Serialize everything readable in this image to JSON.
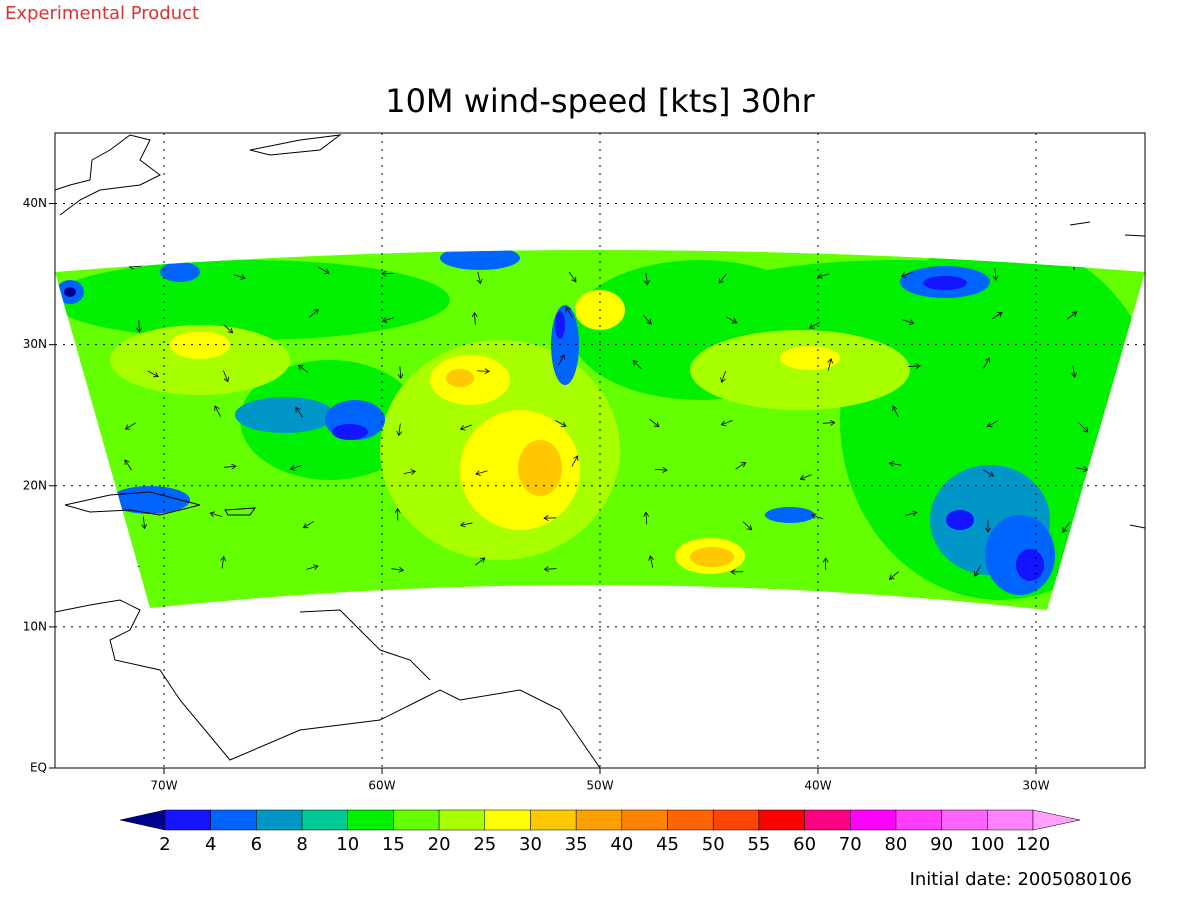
{
  "header": {
    "label": "Experimental Product"
  },
  "map": {
    "title": "10M wind-speed [kts] 30hr",
    "xlim": [
      -75,
      -25
    ],
    "ylim": [
      0,
      45
    ],
    "xticks": [
      {
        "value": -70,
        "label": "70W"
      },
      {
        "value": -60,
        "label": "60W"
      },
      {
        "value": -50,
        "label": "50W"
      },
      {
        "value": -40,
        "label": "40W"
      },
      {
        "value": -30,
        "label": "30W"
      }
    ],
    "yticks": [
      {
        "value": 0,
        "label": "EQ"
      },
      {
        "value": 10,
        "label": "10N"
      },
      {
        "value": 20,
        "label": "20N"
      },
      {
        "value": 30,
        "label": "30N"
      },
      {
        "value": 40,
        "label": "40N"
      }
    ],
    "grid": true
  },
  "colorbar": {
    "levels": [
      2,
      4,
      6,
      8,
      10,
      15,
      20,
      25,
      30,
      35,
      40,
      45,
      50,
      55,
      60,
      70,
      80,
      90,
      100,
      120
    ],
    "colors": [
      "#000090",
      "#1414ff",
      "#0064ff",
      "#0096c8",
      "#00c896",
      "#00f000",
      "#64ff00",
      "#a8ff00",
      "#ffff00",
      "#ffc800",
      "#ffa000",
      "#ff8200",
      "#ff6400",
      "#ff4600",
      "#ff0000",
      "#ff0082",
      "#ff00ff",
      "#ff3cff",
      "#ff64ff",
      "#ff82ff",
      "#ffa0ff"
    ]
  },
  "footer": {
    "initial_date": "Initial date: 2005080106"
  }
}
